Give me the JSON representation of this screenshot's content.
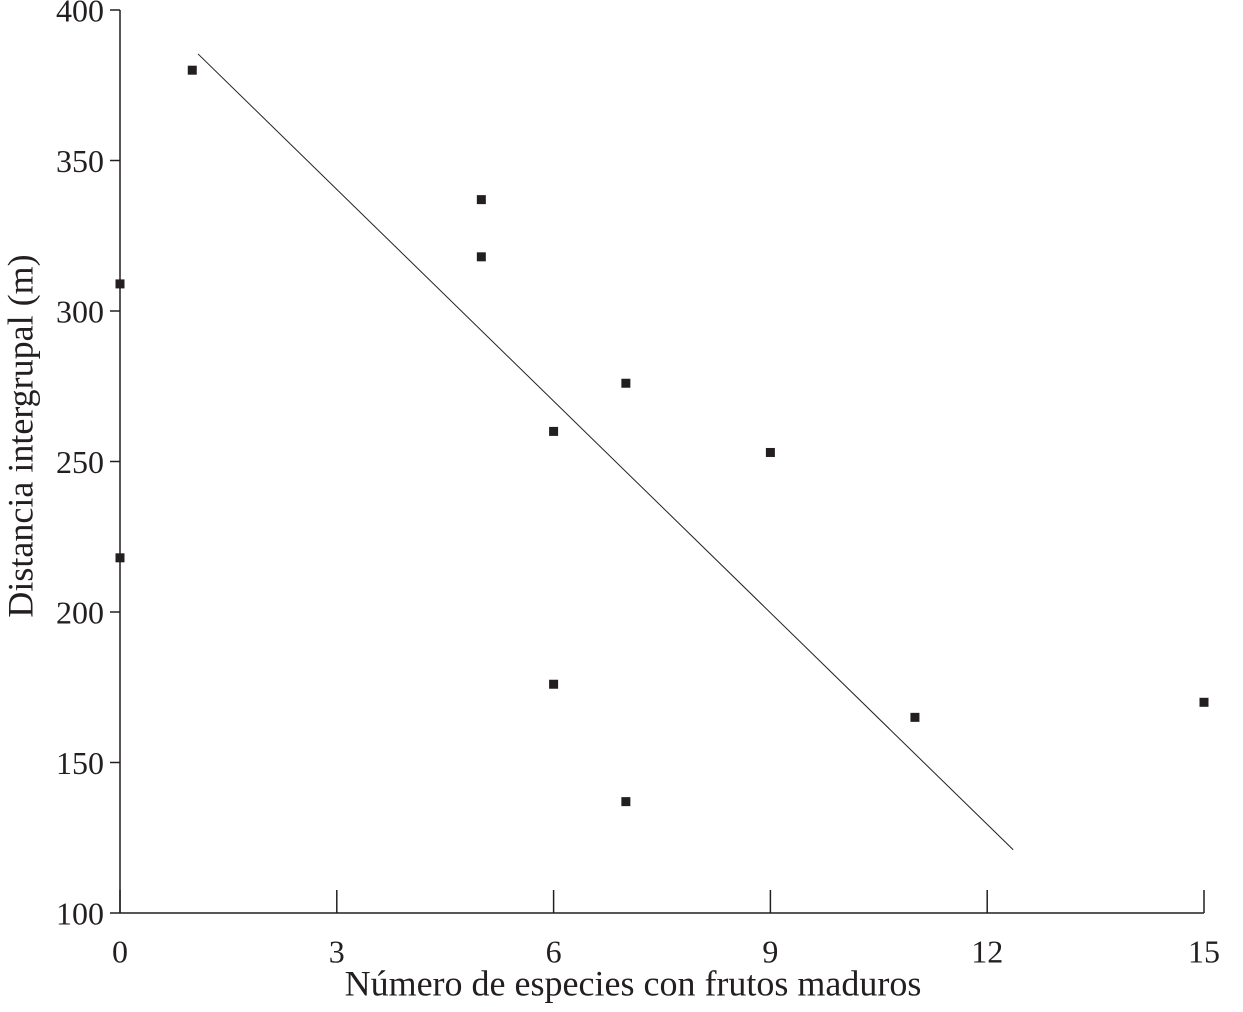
{
  "chart_data": {
    "type": "scatter",
    "x_label": "Número de especies con frutos maduros",
    "y_label": "Distancia intergrupal (m)",
    "series": [
      {
        "color": "#231f20",
        "x": [
          0,
          0,
          1,
          5,
          5,
          6,
          6,
          7,
          7,
          9,
          11,
          15
        ],
        "values": [
          309,
          218,
          380,
          337,
          318,
          260,
          176,
          276,
          137,
          253,
          165,
          170
        ]
      }
    ],
    "trendline": {
      "color": "#231f20",
      "x": [
        1.08,
        12.36
      ],
      "values": [
        385.4,
        121
      ]
    },
    "xlim": [
      0,
      15
    ],
    "xticks": [
      0,
      3,
      6,
      9,
      12,
      15
    ],
    "ylim": [
      100,
      400
    ],
    "yticks": [
      100,
      150,
      200,
      250,
      300,
      350,
      400
    ],
    "grid": false
  }
}
